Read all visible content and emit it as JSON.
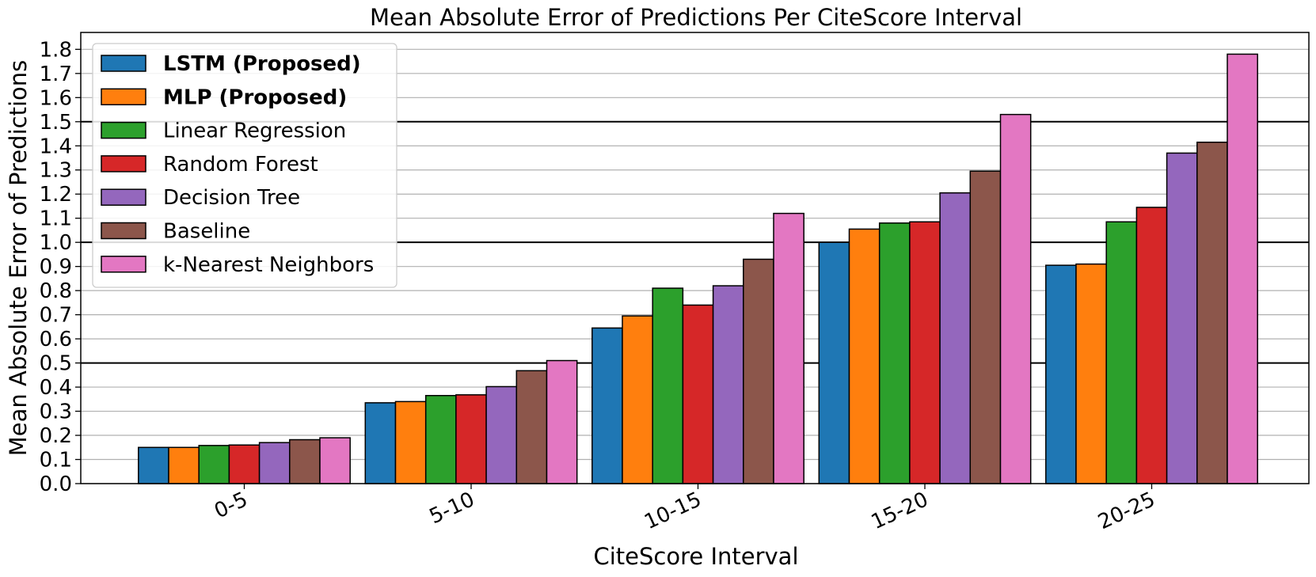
{
  "chart_data": {
    "type": "bar",
    "title": "Mean Absolute Error of Predictions Per CiteScore Interval",
    "xlabel": "CiteScore Interval",
    "ylabel": "Mean Absolute Error of Predictions",
    "categories": [
      "0-5",
      "5-10",
      "10-15",
      "15-20",
      "20-25"
    ],
    "ylim": [
      0,
      1.87
    ],
    "yticks": [
      "0.0",
      "0.1",
      "0.2",
      "0.3",
      "0.4",
      "0.5",
      "0.6",
      "0.7",
      "0.8",
      "0.9",
      "1.0",
      "1.1",
      "1.2",
      "1.3",
      "1.4",
      "1.5",
      "1.6",
      "1.7",
      "1.8"
    ],
    "grid": true,
    "emphasized_gridlines": [
      0.5,
      1.0,
      1.5
    ],
    "legend_position": "upper-left",
    "series": [
      {
        "name": "LSTM (Proposed)",
        "color": "#1f77b4",
        "bold": true,
        "values": [
          0.15,
          0.335,
          0.645,
          1.0,
          0.905
        ]
      },
      {
        "name": "MLP (Proposed)",
        "color": "#ff7f0e",
        "bold": true,
        "values": [
          0.15,
          0.34,
          0.695,
          1.055,
          0.91
        ]
      },
      {
        "name": "Linear Regression",
        "color": "#2ca02c",
        "bold": false,
        "values": [
          0.158,
          0.365,
          0.81,
          1.08,
          1.085
        ]
      },
      {
        "name": "Random Forest",
        "color": "#d62728",
        "bold": false,
        "values": [
          0.16,
          0.368,
          0.74,
          1.085,
          1.145
        ]
      },
      {
        "name": "Decision Tree",
        "color": "#9467bd",
        "bold": false,
        "values": [
          0.17,
          0.402,
          0.82,
          1.205,
          1.37
        ]
      },
      {
        "name": "Baseline",
        "color": "#8c564b",
        "bold": false,
        "values": [
          0.182,
          0.468,
          0.93,
          1.295,
          1.415
        ]
      },
      {
        "name": "k-Nearest Neighbors",
        "color": "#e377c2",
        "bold": false,
        "values": [
          0.19,
          0.51,
          1.12,
          1.53,
          1.78
        ]
      }
    ]
  }
}
